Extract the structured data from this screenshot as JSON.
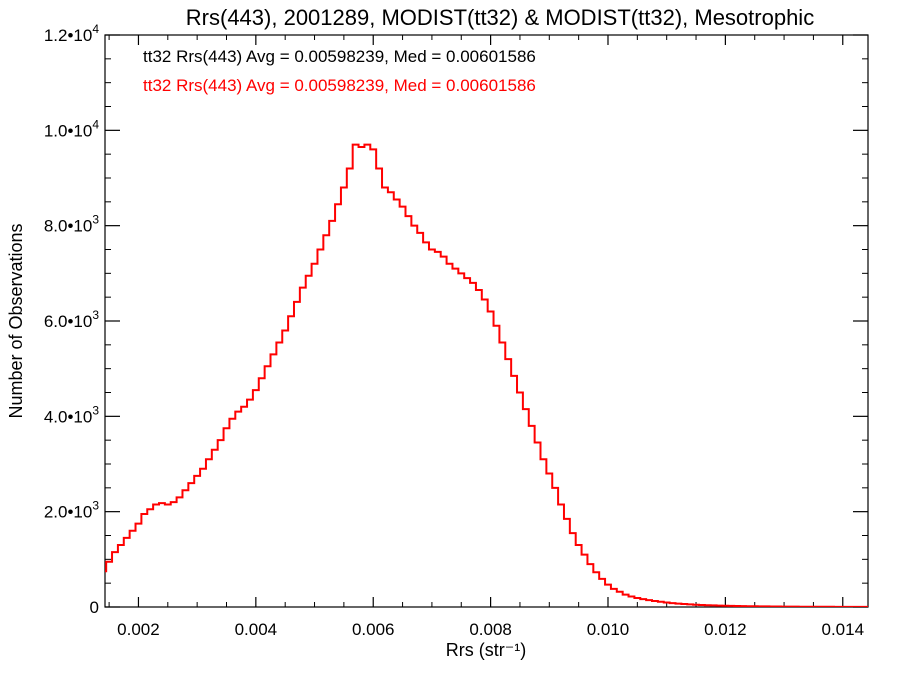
{
  "chart_data": {
    "type": "line",
    "step": true,
    "title": "Rrs(443), 2001289, MODIST(tt32) & MODIST(tt32), Mesotrophic",
    "xlabel": "Rrs (str⁻¹)",
    "ylabel": "Number of Observations",
    "xlim": [
      0.00143,
      0.01443
    ],
    "ylim": [
      0,
      12000
    ],
    "xticks": [
      {
        "value": 0.002,
        "label": "0.002"
      },
      {
        "value": 0.004,
        "label": "0.004"
      },
      {
        "value": 0.006,
        "label": "0.006"
      },
      {
        "value": 0.008,
        "label": "0.008"
      },
      {
        "value": 0.01,
        "label": "0.010"
      },
      {
        "value": 0.012,
        "label": "0.012"
      },
      {
        "value": 0.014,
        "label": "0.014"
      }
    ],
    "yticks": [
      {
        "value": 0,
        "mant": "0",
        "exp": ""
      },
      {
        "value": 2000,
        "mant": "2.0•10",
        "exp": "3"
      },
      {
        "value": 4000,
        "mant": "4.0•10",
        "exp": "3"
      },
      {
        "value": 6000,
        "mant": "6.0•10",
        "exp": "3"
      },
      {
        "value": 8000,
        "mant": "8.0•10",
        "exp": "3"
      },
      {
        "value": 10000,
        "mant": "1.0•10",
        "exp": "4"
      },
      {
        "value": 12000,
        "mant": "1.2•10",
        "exp": "4"
      }
    ],
    "legend_entries": [
      {
        "text": "tt32 Rrs(443) Avg = 0.00598239, Med = 0.00601586",
        "color": "#000000"
      },
      {
        "text": "tt32 Rrs(443) Avg = 0.00598239, Med = 0.00601586",
        "color": "#ff0000"
      }
    ],
    "legend_position": "top-left",
    "grid": false,
    "series": [
      {
        "color": "#ff0000",
        "x": [
          0.0014,
          0.0015,
          0.0016,
          0.0017,
          0.0018,
          0.0019,
          0.002,
          0.0021,
          0.0022,
          0.0023,
          0.0024,
          0.0025,
          0.0026,
          0.0027,
          0.0028,
          0.0029,
          0.003,
          0.0031,
          0.0032,
          0.0033,
          0.0034,
          0.0035,
          0.0036,
          0.0037,
          0.0038,
          0.0039,
          0.004,
          0.0041,
          0.0042,
          0.0043,
          0.0044,
          0.0045,
          0.0046,
          0.0047,
          0.0048,
          0.0049,
          0.005,
          0.0051,
          0.0052,
          0.0053,
          0.0054,
          0.0055,
          0.0056,
          0.0057,
          0.0058,
          0.0059,
          0.006,
          0.0061,
          0.0062,
          0.0063,
          0.0064,
          0.0065,
          0.0066,
          0.0067,
          0.0068,
          0.0069,
          0.007,
          0.0071,
          0.0072,
          0.0073,
          0.0074,
          0.0075,
          0.0076,
          0.0077,
          0.0078,
          0.0079,
          0.008,
          0.0081,
          0.0082,
          0.0083,
          0.0084,
          0.0085,
          0.0086,
          0.0087,
          0.0088,
          0.0089,
          0.009,
          0.0091,
          0.0092,
          0.0093,
          0.0094,
          0.0095,
          0.0096,
          0.0097,
          0.0098,
          0.0099,
          0.01,
          0.0101,
          0.0102,
          0.0103,
          0.0104,
          0.0105,
          0.0106,
          0.0107,
          0.0108,
          0.0109,
          0.011,
          0.0111,
          0.0112,
          0.0113,
          0.0114,
          0.0115,
          0.0116,
          0.0117,
          0.0118,
          0.0119,
          0.012,
          0.0121,
          0.0122,
          0.0123,
          0.0124,
          0.0125,
          0.0126,
          0.0127,
          0.0128,
          0.0129,
          0.013,
          0.0131,
          0.0132,
          0.0133,
          0.0134,
          0.0135,
          0.0136,
          0.0137,
          0.0138,
          0.0139,
          0.014,
          0.0141,
          0.0142,
          0.0143,
          0.0144
        ],
        "values": [
          750,
          950,
          1150,
          1300,
          1450,
          1600,
          1750,
          1950,
          2050,
          2150,
          2180,
          2150,
          2200,
          2300,
          2450,
          2600,
          2750,
          2900,
          3100,
          3300,
          3500,
          3750,
          3950,
          4100,
          4200,
          4350,
          4550,
          4800,
          5050,
          5300,
          5550,
          5800,
          6100,
          6400,
          6700,
          6950,
          7200,
          7500,
          7800,
          8100,
          8450,
          8800,
          9200,
          9700,
          9650,
          9700,
          9600,
          9200,
          8800,
          8700,
          8550,
          8400,
          8200,
          8000,
          7850,
          7650,
          7500,
          7450,
          7350,
          7200,
          7100,
          7000,
          6900,
          6800,
          6650,
          6450,
          6200,
          5900,
          5550,
          5200,
          4850,
          4500,
          4150,
          3800,
          3450,
          3100,
          2800,
          2500,
          2150,
          1850,
          1550,
          1300,
          1100,
          900,
          730,
          590,
          470,
          380,
          320,
          260,
          220,
          190,
          165,
          145,
          125,
          110,
          95,
          82,
          72,
          63,
          55,
          48,
          42,
          37,
          33,
          29,
          26,
          23,
          21,
          19,
          17,
          15,
          14,
          12,
          11,
          10,
          9,
          8,
          7,
          6,
          6,
          5,
          5,
          4,
          4,
          3,
          3,
          3,
          2,
          2,
          2
        ]
      }
    ]
  }
}
